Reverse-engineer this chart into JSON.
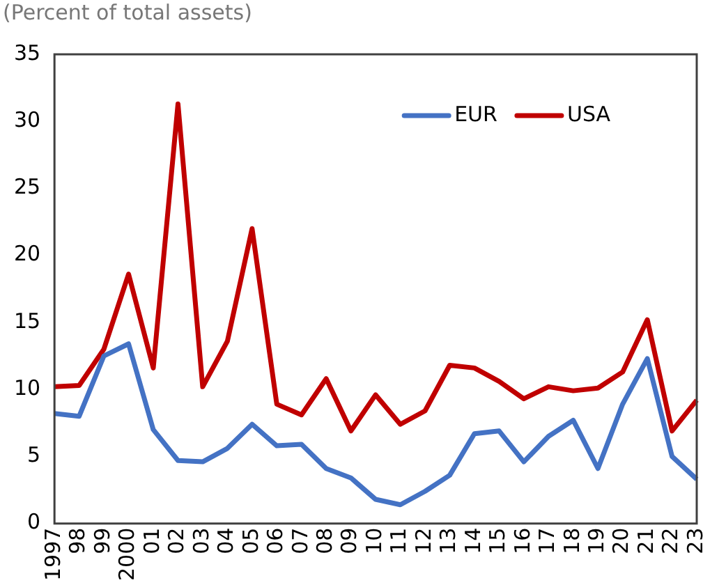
{
  "chart_data": {
    "type": "line",
    "subtitle": "(Percent of total assets)",
    "categories": [
      "1997",
      "98",
      "99",
      "2000",
      "01",
      "02",
      "03",
      "04",
      "05",
      "06",
      "07",
      "08",
      "09",
      "10",
      "11",
      "12",
      "13",
      "14",
      "15",
      "16",
      "17",
      "18",
      "19",
      "20",
      "21",
      "22",
      "23"
    ],
    "series": [
      {
        "name": "EUR",
        "color": "#4472c4",
        "values": [
          8.2,
          8.0,
          12.5,
          13.4,
          7.0,
          4.7,
          4.6,
          5.6,
          7.4,
          5.8,
          5.9,
          4.1,
          3.4,
          1.8,
          1.4,
          2.4,
          3.6,
          6.7,
          6.9,
          4.6,
          6.5,
          7.7,
          4.1,
          8.9,
          12.3,
          5.0,
          3.3
        ]
      },
      {
        "name": "USA",
        "color": "#c00000",
        "values": [
          10.2,
          10.3,
          13.0,
          18.6,
          11.6,
          31.3,
          10.2,
          13.6,
          22.0,
          8.9,
          8.1,
          10.8,
          6.9,
          9.6,
          7.4,
          8.4,
          11.8,
          11.6,
          10.6,
          9.3,
          10.2,
          9.9,
          10.1,
          11.3,
          15.2,
          6.9,
          9.2
        ]
      }
    ],
    "ylim": [
      0,
      35
    ],
    "yticks": [
      0,
      5,
      10,
      15,
      20,
      25,
      30,
      35
    ],
    "grid": false,
    "legend": "top right",
    "marker": "none",
    "line_style": "solid"
  }
}
